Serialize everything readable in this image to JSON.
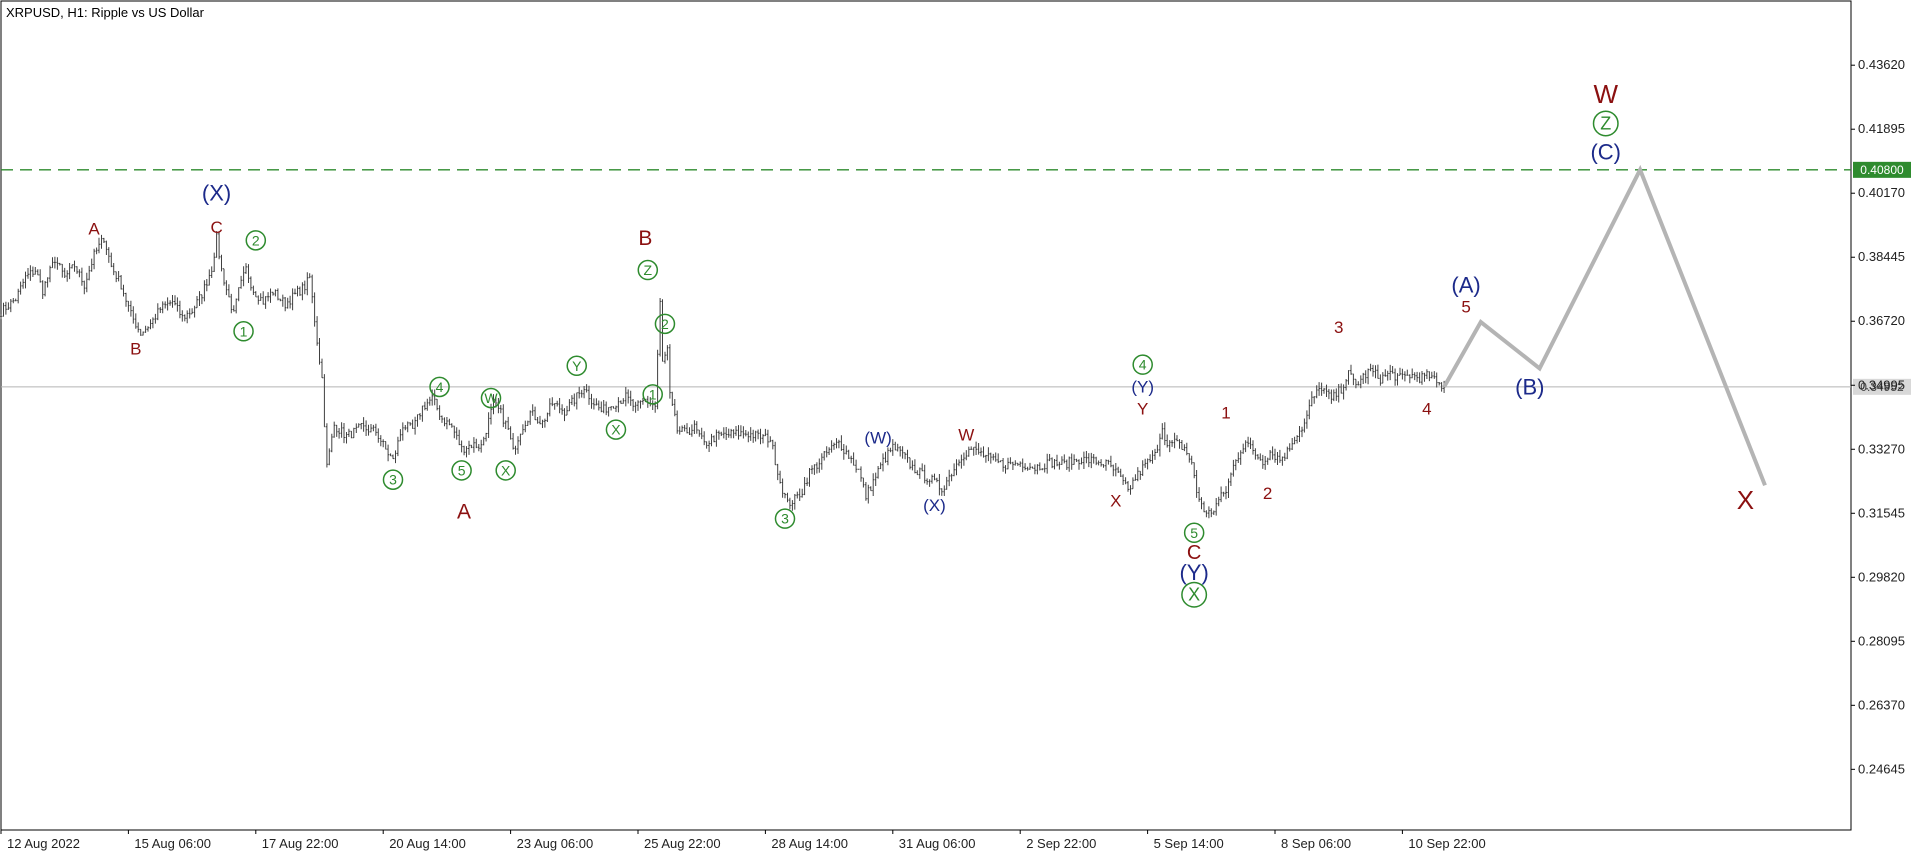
{
  "chart_data": {
    "type": "line",
    "title": "XRPUSD, H1:  Ripple vs US Dollar",
    "symbol": "XRPUSD",
    "timeframe": "H1",
    "instrument": "Ripple vs US Dollar",
    "x_tick_labels": [
      "12 Aug 2022",
      "15 Aug 06:00",
      "17 Aug 22:00",
      "20 Aug 14:00",
      "23 Aug 06:00",
      "25 Aug 22:00",
      "28 Aug 14:00",
      "31 Aug 06:00",
      "2 Sep 22:00",
      "5 Sep 14:00",
      "8 Sep 06:00",
      "10 Sep 22:00"
    ],
    "y_tick_labels": [
      "0.43620",
      "0.41895",
      "0.40170",
      "0.38445",
      "0.36720",
      "0.34995",
      "0.33270",
      "0.31545",
      "0.29820",
      "0.28095",
      "0.26370",
      "0.24645"
    ],
    "ylim": [
      0.2301,
      0.4535
    ],
    "current_price": "0.34952",
    "target_level": "0.40800",
    "colors": {
      "price": "#404040",
      "forecast": "#b4b4b4",
      "target_line": "#2e8b2e",
      "dark_red": "#8b1010",
      "navy": "#1c2a8a",
      "green": "#2e8b2e",
      "current_line": "#b4b4b4"
    },
    "price_path": [
      [
        0,
        0.3698
      ],
      [
        6,
        0.3732
      ],
      [
        10,
        0.379
      ],
      [
        14,
        0.381
      ],
      [
        17,
        0.3755
      ],
      [
        22,
        0.384
      ],
      [
        26,
        0.379
      ],
      [
        30,
        0.3822
      ],
      [
        34,
        0.377
      ],
      [
        38,
        0.385
      ],
      [
        42,
        0.3897
      ],
      [
        45,
        0.382
      ],
      [
        49,
        0.377
      ],
      [
        53,
        0.369
      ],
      [
        57,
        0.364
      ],
      [
        61,
        0.3665
      ],
      [
        65,
        0.3705
      ],
      [
        70,
        0.3725
      ],
      [
        74,
        0.3682
      ],
      [
        78,
        0.37
      ],
      [
        82,
        0.3745
      ],
      [
        86,
        0.3815
      ],
      [
        88,
        0.3895
      ],
      [
        90,
        0.381
      ],
      [
        92,
        0.3758
      ],
      [
        95,
        0.369
      ],
      [
        97,
        0.3753
      ],
      [
        100,
        0.3812
      ],
      [
        103,
        0.3756
      ],
      [
        107,
        0.3725
      ],
      [
        111,
        0.3752
      ],
      [
        116,
        0.3718
      ],
      [
        121,
        0.375
      ],
      [
        124,
        0.3765
      ],
      [
        126,
        0.379
      ],
      [
        129,
        0.362
      ],
      [
        131,
        0.3518
      ],
      [
        133,
        0.328
      ],
      [
        136,
        0.3392
      ],
      [
        141,
        0.3362
      ],
      [
        147,
        0.3385
      ],
      [
        153,
        0.3375
      ],
      [
        157,
        0.3326
      ],
      [
        160,
        0.3296
      ],
      [
        164,
        0.3392
      ],
      [
        168,
        0.338
      ],
      [
        172,
        0.344
      ],
      [
        176,
        0.3464
      ],
      [
        180,
        0.341
      ],
      [
        184,
        0.3388
      ],
      [
        188,
        0.3328
      ],
      [
        192,
        0.334
      ],
      [
        196,
        0.3335
      ],
      [
        198,
        0.338
      ],
      [
        201,
        0.345
      ],
      [
        204,
        0.3424
      ],
      [
        207,
        0.338
      ],
      [
        209,
        0.332
      ],
      [
        212,
        0.3378
      ],
      [
        216,
        0.3425
      ],
      [
        221,
        0.3398
      ],
      [
        225,
        0.345
      ],
      [
        230,
        0.343
      ],
      [
        234,
        0.346
      ],
      [
        238,
        0.3495
      ],
      [
        241,
        0.346
      ],
      [
        245,
        0.343
      ],
      [
        250,
        0.345
      ],
      [
        255,
        0.3468
      ],
      [
        259,
        0.3437
      ],
      [
        263,
        0.346
      ],
      [
        267,
        0.3443
      ],
      [
        269,
        0.372
      ],
      [
        270,
        0.356
      ],
      [
        272,
        0.3595
      ],
      [
        273,
        0.347
      ],
      [
        276,
        0.3378
      ],
      [
        279,
        0.3372
      ],
      [
        283,
        0.3385
      ],
      [
        287,
        0.334
      ],
      [
        292,
        0.3362
      ],
      [
        298,
        0.3368
      ],
      [
        304,
        0.337
      ],
      [
        309,
        0.3362
      ],
      [
        314,
        0.3355
      ],
      [
        318,
        0.324
      ],
      [
        321,
        0.318
      ],
      [
        324,
        0.3192
      ],
      [
        327,
        0.3215
      ],
      [
        330,
        0.3265
      ],
      [
        334,
        0.3292
      ],
      [
        338,
        0.3325
      ],
      [
        342,
        0.3345
      ],
      [
        346,
        0.331
      ],
      [
        350,
        0.327
      ],
      [
        353,
        0.32
      ],
      [
        356,
        0.324
      ],
      [
        360,
        0.3295
      ],
      [
        364,
        0.3332
      ],
      [
        368,
        0.3312
      ],
      [
        372,
        0.3278
      ],
      [
        376,
        0.3258
      ],
      [
        380,
        0.3243
      ],
      [
        384,
        0.322
      ],
      [
        388,
        0.3265
      ],
      [
        392,
        0.331
      ],
      [
        396,
        0.3328
      ],
      [
        400,
        0.3315
      ],
      [
        405,
        0.3295
      ],
      [
        410,
        0.3285
      ],
      [
        416,
        0.329
      ],
      [
        422,
        0.3278
      ],
      [
        428,
        0.3292
      ],
      [
        434,
        0.3287
      ],
      [
        440,
        0.33
      ],
      [
        446,
        0.3296
      ],
      [
        452,
        0.3285
      ],
      [
        456,
        0.3258
      ],
      [
        460,
        0.3214
      ],
      [
        463,
        0.325
      ],
      [
        467,
        0.3285
      ],
      [
        471,
        0.331
      ],
      [
        474,
        0.339
      ],
      [
        476,
        0.3335
      ],
      [
        479,
        0.3345
      ],
      [
        483,
        0.333
      ],
      [
        486,
        0.329
      ],
      [
        488,
        0.321
      ],
      [
        490,
        0.318
      ],
      [
        492,
        0.315
      ],
      [
        495,
        0.3165
      ],
      [
        497,
        0.319
      ],
      [
        500,
        0.3215
      ],
      [
        503,
        0.328
      ],
      [
        506,
        0.3325
      ],
      [
        508,
        0.335
      ],
      [
        511,
        0.332
      ],
      [
        515,
        0.3295
      ],
      [
        518,
        0.332
      ],
      [
        522,
        0.33
      ],
      [
        525,
        0.332
      ],
      [
        528,
        0.336
      ],
      [
        532,
        0.3395
      ],
      [
        535,
        0.346
      ],
      [
        539,
        0.3495
      ],
      [
        543,
        0.346
      ],
      [
        547,
        0.349
      ],
      [
        550,
        0.353
      ],
      [
        553,
        0.35
      ],
      [
        556,
        0.3522
      ],
      [
        559,
        0.354
      ],
      [
        563,
        0.3517
      ],
      [
        567,
        0.3532
      ],
      [
        571,
        0.3518
      ],
      [
        575,
        0.3527
      ],
      [
        579,
        0.352
      ],
      [
        583,
        0.3525
      ],
      [
        586,
        0.3505
      ],
      [
        589,
        0.3495
      ]
    ],
    "forecast_path": [
      [
        589,
        0.3495
      ],
      [
        604,
        0.367
      ],
      [
        628,
        0.3545
      ],
      [
        669,
        0.408
      ],
      [
        720,
        0.323
      ]
    ],
    "wave_labels": [
      {
        "text": "A",
        "hr": 38,
        "price": 0.392,
        "color": "dark_red",
        "size": 17,
        "circle": false
      },
      {
        "text": "B",
        "hr": 55,
        "price": 0.3597,
        "color": "dark_red",
        "size": 17,
        "circle": false
      },
      {
        "text": "(X)",
        "hr": 88,
        "price": 0.4018,
        "color": "navy",
        "size": 22,
        "circle": false
      },
      {
        "text": "C",
        "hr": 88,
        "price": 0.3925,
        "color": "dark_red",
        "size": 17,
        "circle": false
      },
      {
        "text": "2",
        "hr": 104,
        "price": 0.389,
        "color": "green",
        "size": 14,
        "circle": true
      },
      {
        "text": "1",
        "hr": 99,
        "price": 0.3645,
        "color": "green",
        "size": 14,
        "circle": true
      },
      {
        "text": "3",
        "hr": 160,
        "price": 0.3245,
        "color": "green",
        "size": 14,
        "circle": true
      },
      {
        "text": "4",
        "hr": 179,
        "price": 0.3495,
        "color": "green",
        "size": 14,
        "circle": true
      },
      {
        "text": "5",
        "hr": 188,
        "price": 0.327,
        "color": "green",
        "size": 14,
        "circle": true
      },
      {
        "text": "W",
        "hr": 200,
        "price": 0.3465,
        "color": "green",
        "size": 14,
        "circle": true
      },
      {
        "text": "X",
        "hr": 206,
        "price": 0.327,
        "color": "green",
        "size": 14,
        "circle": true
      },
      {
        "text": "A",
        "hr": 189,
        "price": 0.3158,
        "color": "dark_red",
        "size": 21,
        "circle": false
      },
      {
        "text": "Y",
        "hr": 235,
        "price": 0.3552,
        "color": "green",
        "size": 14,
        "circle": true
      },
      {
        "text": "X",
        "hr": 251,
        "price": 0.338,
        "color": "green",
        "size": 14,
        "circle": true
      },
      {
        "text": "B",
        "hr": 263,
        "price": 0.3895,
        "color": "dark_red",
        "size": 21,
        "circle": false
      },
      {
        "text": "Z",
        "hr": 264,
        "price": 0.381,
        "color": "green",
        "size": 14,
        "circle": true
      },
      {
        "text": "2",
        "hr": 271,
        "price": 0.3665,
        "color": "green",
        "size": 14,
        "circle": true
      },
      {
        "text": "1",
        "hr": 266,
        "price": 0.3475,
        "color": "green",
        "size": 14,
        "circle": true
      },
      {
        "text": "3",
        "hr": 320,
        "price": 0.314,
        "color": "green",
        "size": 14,
        "circle": true
      },
      {
        "text": "(W)",
        "hr": 358,
        "price": 0.3358,
        "color": "navy",
        "size": 17,
        "circle": false
      },
      {
        "text": "(X)",
        "hr": 381,
        "price": 0.3175,
        "color": "navy",
        "size": 17,
        "circle": false
      },
      {
        "text": "W",
        "hr": 394,
        "price": 0.3365,
        "color": "dark_red",
        "size": 17,
        "circle": false
      },
      {
        "text": "X",
        "hr": 455,
        "price": 0.3188,
        "color": "dark_red",
        "size": 17,
        "circle": false
      },
      {
        "text": "4",
        "hr": 466,
        "price": 0.3555,
        "color": "green",
        "size": 14,
        "circle": true
      },
      {
        "text": "(Y)",
        "hr": 466,
        "price": 0.3495,
        "color": "navy",
        "size": 17,
        "circle": false
      },
      {
        "text": "Y",
        "hr": 466,
        "price": 0.3435,
        "color": "dark_red",
        "size": 17,
        "circle": false
      },
      {
        "text": "5",
        "hr": 487,
        "price": 0.3102,
        "color": "green",
        "size": 14,
        "circle": true
      },
      {
        "text": "C",
        "hr": 487,
        "price": 0.3047,
        "color": "dark_red",
        "size": 20,
        "circle": false
      },
      {
        "text": "(Y)",
        "hr": 487,
        "price": 0.2995,
        "color": "navy",
        "size": 22,
        "circle": false
      },
      {
        "text": "X",
        "hr": 487,
        "price": 0.2935,
        "color": "green",
        "size": 18,
        "circle": true
      },
      {
        "text": "1",
        "hr": 500,
        "price": 0.3425,
        "color": "dark_red",
        "size": 17,
        "circle": false
      },
      {
        "text": "2",
        "hr": 517,
        "price": 0.3208,
        "color": "dark_red",
        "size": 17,
        "circle": false
      },
      {
        "text": "3",
        "hr": 546,
        "price": 0.3655,
        "color": "dark_red",
        "size": 17,
        "circle": false
      },
      {
        "text": "4",
        "hr": 582,
        "price": 0.3435,
        "color": "dark_red",
        "size": 17,
        "circle": false
      },
      {
        "text": "(A)",
        "hr": 598,
        "price": 0.377,
        "color": "navy",
        "size": 22,
        "circle": false
      },
      {
        "text": "5",
        "hr": 598,
        "price": 0.371,
        "color": "dark_red",
        "size": 17,
        "circle": false
      },
      {
        "text": "(B)",
        "hr": 624,
        "price": 0.3495,
        "color": "navy",
        "size": 22,
        "circle": false
      },
      {
        "text": "W",
        "hr": 655,
        "price": 0.4285,
        "color": "dark_red",
        "size": 26,
        "circle": false
      },
      {
        "text": "Z",
        "hr": 655,
        "price": 0.4205,
        "color": "green",
        "size": 18,
        "circle": true
      },
      {
        "text": "(C)",
        "hr": 655,
        "price": 0.4128,
        "color": "navy",
        "size": 22,
        "circle": false
      },
      {
        "text": "X",
        "hr": 712,
        "price": 0.319,
        "color": "dark_red",
        "size": 26,
        "circle": false
      }
    ]
  }
}
